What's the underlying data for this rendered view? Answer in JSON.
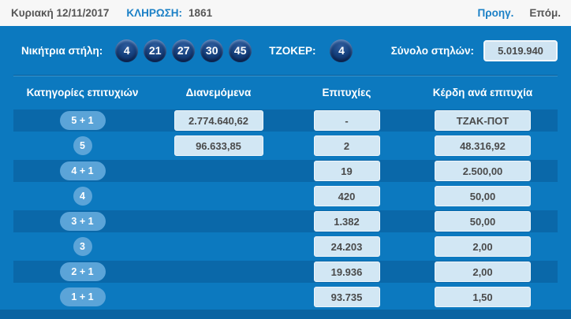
{
  "topbar": {
    "date": "Κυριακή 12/11/2017",
    "draw_label": "ΚΛΗΡΩΣΗ:",
    "draw_number": "1861",
    "prev_label": "Προηγ.",
    "next_label": "Επόμ."
  },
  "winning": {
    "label": "Νικήτρια στήλη:",
    "numbers": [
      "4",
      "21",
      "27",
      "30",
      "45"
    ],
    "joker_label": "ΤΖΟΚΕΡ:",
    "joker_number": "4",
    "total_label": "Σύνολο στηλών:",
    "total_value": "5.019.940"
  },
  "table": {
    "headers": [
      "Κατηγορίες επιτυχιών",
      "Διανεμόμενα",
      "Επιτυχίες",
      "Κέρδη ανά επιτυχία"
    ],
    "rows": [
      {
        "category": "5 + 1",
        "distributed": "2.774.640,62",
        "winners": "-",
        "prize": "ΤΖΑΚ-ΠΟΤ",
        "dark": true,
        "pill": true
      },
      {
        "category": "5",
        "distributed": "96.633,85",
        "winners": "2",
        "prize": "48.316,92",
        "dark": false,
        "pill": false
      },
      {
        "category": "4 + 1",
        "distributed": "",
        "winners": "19",
        "prize": "2.500,00",
        "dark": true,
        "pill": true
      },
      {
        "category": "4",
        "distributed": "",
        "winners": "420",
        "prize": "50,00",
        "dark": false,
        "pill": false
      },
      {
        "category": "3 + 1",
        "distributed": "",
        "winners": "1.382",
        "prize": "50,00",
        "dark": true,
        "pill": true
      },
      {
        "category": "3",
        "distributed": "",
        "winners": "24.203",
        "prize": "2,00",
        "dark": false,
        "pill": false
      },
      {
        "category": "2 + 1",
        "distributed": "",
        "winners": "19.936",
        "prize": "2,00",
        "dark": true,
        "pill": true
      },
      {
        "category": "1 + 1",
        "distributed": "",
        "winners": "93.735",
        "prize": "1,50",
        "dark": false,
        "pill": true
      }
    ]
  },
  "colors": {
    "panel_blue": "#0c79bf",
    "dark_row_blue": "#0a68a9",
    "footer_blue": "#0a64a2",
    "link_blue": "#1b80c6",
    "ball_navy": "#16417e",
    "badge_blue": "#5ba4d8",
    "box_light_blue": "#d2e7f4",
    "text_dark": "#4a4a4a"
  }
}
